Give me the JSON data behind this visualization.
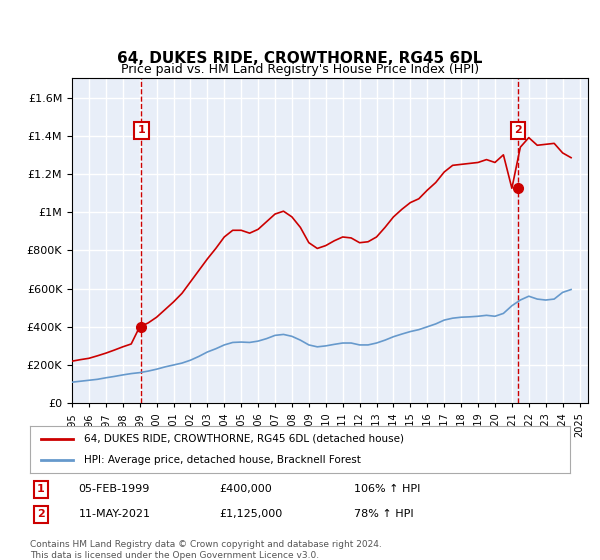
{
  "title": "64, DUKES RIDE, CROWTHORNE, RG45 6DL",
  "subtitle": "Price paid vs. HM Land Registry's House Price Index (HPI)",
  "title_fontsize": 11,
  "subtitle_fontsize": 9,
  "bg_color": "#e8eef8",
  "plot_bg": "#e8eef8",
  "grid_color": "#ffffff",
  "red_line_color": "#cc0000",
  "blue_line_color": "#6699cc",
  "marker_color": "#cc0000",
  "purchase1_year": 1999.1,
  "purchase1_price": 400000,
  "purchase1_label": "1",
  "purchase2_year": 2021.37,
  "purchase2_price": 1125000,
  "purchase2_label": "2",
  "ylim_max": 1700000,
  "ylim_min": 0,
  "footer": "Contains HM Land Registry data © Crown copyright and database right 2024.\nThis data is licensed under the Open Government Licence v3.0.",
  "legend_line1": "64, DUKES RIDE, CROWTHORNE, RG45 6DL (detached house)",
  "legend_line2": "HPI: Average price, detached house, Bracknell Forest",
  "table_row1": [
    "1",
    "05-FEB-1999",
    "£400,000",
    "106% ↑ HPI"
  ],
  "table_row2": [
    "2",
    "11-MAY-2021",
    "£1,125,000",
    "78% ↑ HPI"
  ],
  "hpi_years": [
    1995,
    1995.5,
    1996,
    1996.5,
    1997,
    1997.5,
    1998,
    1998.5,
    1999,
    1999.5,
    2000,
    2000.5,
    2001,
    2001.5,
    2002,
    2002.5,
    2003,
    2003.5,
    2004,
    2004.5,
    2005,
    2005.5,
    2006,
    2006.5,
    2007,
    2007.5,
    2008,
    2008.5,
    2009,
    2009.5,
    2010,
    2010.5,
    2011,
    2011.5,
    2012,
    2012.5,
    2013,
    2013.5,
    2014,
    2014.5,
    2015,
    2015.5,
    2016,
    2016.5,
    2017,
    2017.5,
    2018,
    2018.5,
    2019,
    2019.5,
    2020,
    2020.5,
    2021,
    2021.5,
    2022,
    2022.5,
    2023,
    2023.5,
    2024,
    2024.5
  ],
  "hpi_values": [
    110000,
    115000,
    120000,
    125000,
    133000,
    140000,
    148000,
    155000,
    160000,
    168000,
    178000,
    190000,
    200000,
    210000,
    225000,
    245000,
    268000,
    285000,
    305000,
    318000,
    320000,
    318000,
    325000,
    338000,
    355000,
    360000,
    350000,
    330000,
    305000,
    295000,
    300000,
    308000,
    315000,
    315000,
    305000,
    305000,
    315000,
    330000,
    348000,
    362000,
    375000,
    385000,
    400000,
    415000,
    435000,
    445000,
    450000,
    452000,
    455000,
    460000,
    455000,
    470000,
    510000,
    540000,
    560000,
    545000,
    540000,
    545000,
    580000,
    595000
  ],
  "red_years": [
    1995,
    1995.5,
    1996,
    1996.5,
    1997,
    1997.5,
    1998,
    1998.5,
    1999,
    1999.5,
    2000,
    2000.5,
    2001,
    2001.5,
    2002,
    2002.5,
    2003,
    2003.5,
    2004,
    2004.5,
    2005,
    2005.5,
    2006,
    2006.5,
    2007,
    2007.5,
    2008,
    2008.5,
    2009,
    2009.5,
    2010,
    2010.5,
    2011,
    2011.5,
    2012,
    2012.5,
    2013,
    2013.5,
    2014,
    2014.5,
    2015,
    2015.5,
    2016,
    2016.5,
    2017,
    2017.5,
    2018,
    2018.5,
    2019,
    2019.5,
    2020,
    2020.5,
    2021,
    2021.5,
    2022,
    2022.5,
    2023,
    2023.5,
    2024,
    2024.5
  ],
  "red_values": [
    220000,
    228000,
    235000,
    248000,
    262000,
    278000,
    295000,
    310000,
    400000,
    420000,
    450000,
    490000,
    530000,
    575000,
    635000,
    695000,
    755000,
    810000,
    870000,
    905000,
    905000,
    890000,
    910000,
    950000,
    990000,
    1005000,
    975000,
    920000,
    840000,
    810000,
    825000,
    850000,
    870000,
    865000,
    840000,
    845000,
    870000,
    920000,
    975000,
    1015000,
    1050000,
    1070000,
    1115000,
    1155000,
    1210000,
    1245000,
    1250000,
    1255000,
    1260000,
    1275000,
    1260000,
    1300000,
    1125000,
    1340000,
    1390000,
    1350000,
    1355000,
    1360000,
    1310000,
    1285000
  ]
}
